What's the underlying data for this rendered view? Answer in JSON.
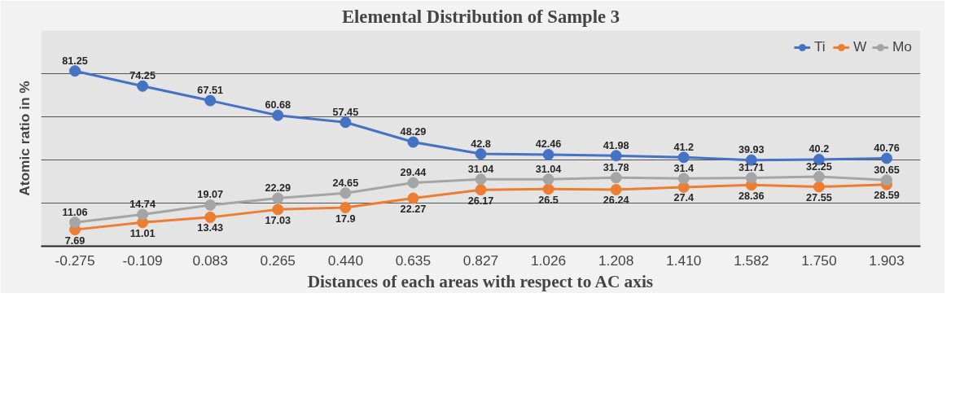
{
  "chart_data": {
    "type": "line",
    "title": "Elemental Distribution of Sample 3",
    "xlabel": "Distances of each areas with respect to AC axis",
    "ylabel": "Atomic ratio in %",
    "categories": [
      "-0.275",
      "-0.109",
      "0.083",
      "0.265",
      "0.440",
      "0.635",
      "0.827",
      "1.026",
      "1.208",
      "1.410",
      "1.582",
      "1.750",
      "1.903"
    ],
    "series": [
      {
        "name": "Ti",
        "color": "#4472c4",
        "values": [
          81.25,
          74.25,
          67.51,
          60.68,
          57.45,
          48.29,
          42.8,
          42.46,
          41.98,
          41.2,
          39.93,
          40.2,
          40.76
        ]
      },
      {
        "name": "W",
        "color": "#ed7d31",
        "values": [
          7.69,
          11.01,
          13.43,
          17.03,
          17.9,
          22.27,
          26.17,
          26.5,
          26.24,
          27.4,
          28.36,
          27.55,
          28.59
        ]
      },
      {
        "name": "Mo",
        "color": "#a5a5a5",
        "values": [
          11.06,
          14.74,
          19.07,
          22.29,
          24.65,
          29.44,
          31.04,
          31.04,
          31.78,
          31.4,
          31.71,
          32.25,
          30.65
        ]
      }
    ],
    "ylim": [
      0,
      100
    ],
    "yticks": [
      {
        "value": 0,
        "label": null
      },
      {
        "value": 20,
        "label": null
      },
      {
        "value": 40,
        "label": null
      },
      {
        "value": 60,
        "label": null
      },
      {
        "value": 80,
        "label": null
      },
      {
        "value": 100,
        "label": null
      }
    ],
    "grid": "y",
    "legend": "top right",
    "marker": "circle",
    "line_style": "solid",
    "data_labels": true
  }
}
